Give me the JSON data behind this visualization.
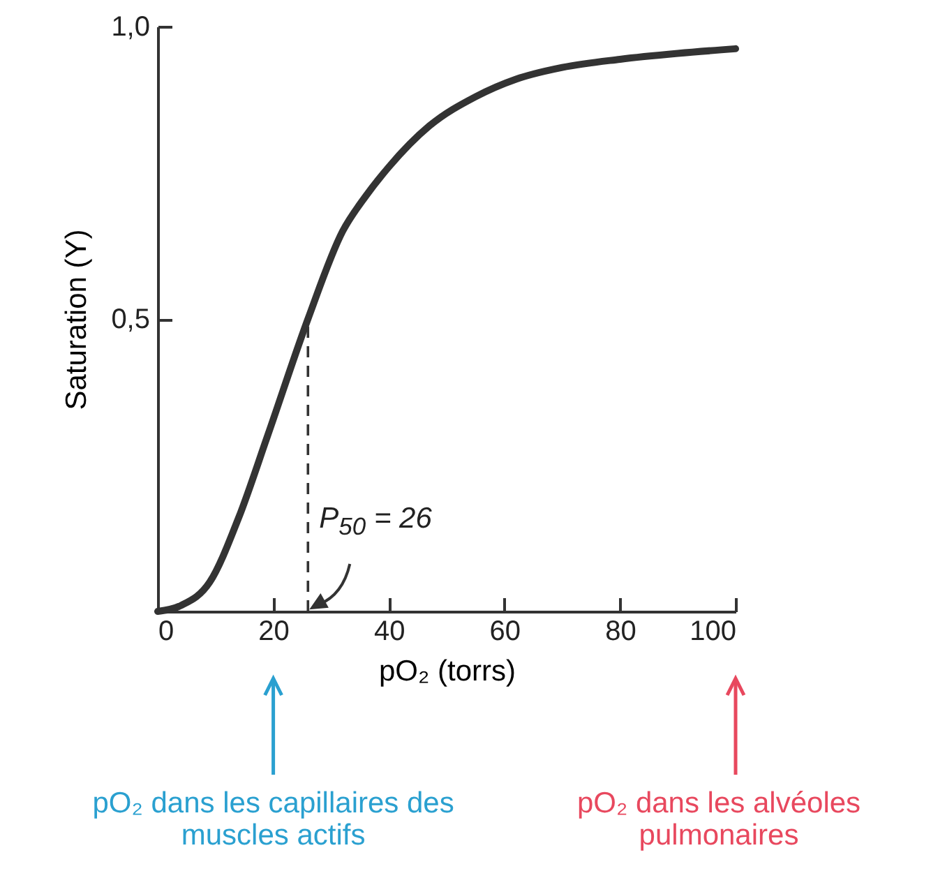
{
  "chart_data": {
    "type": "line",
    "xlabel": "pO₂ (torrs)",
    "ylabel": "Saturation (Y)",
    "x": [
      0,
      4,
      9,
      14,
      19,
      26,
      32,
      36,
      40,
      47,
      55,
      62,
      70,
      80,
      90,
      100
    ],
    "series": [
      {
        "color": "#333333",
        "values": [
          0,
          0.01,
          0.05,
          0.16,
          0.3,
          0.5,
          0.65,
          0.71,
          0.76,
          0.83,
          0.88,
          0.91,
          0.93,
          0.944,
          0.954,
          0.962
        ]
      },
      {
        "color": "#333333",
        "x": [
          26,
          26
        ],
        "values": [
          0,
          0.5
        ],
        "line_style": "dashed"
      }
    ],
    "xlim": [
      0,
      100
    ],
    "xticks": [
      0,
      20,
      40,
      60,
      80,
      100
    ],
    "ylim": [
      0,
      1
    ],
    "yticks": [
      {
        "value": 0.5,
        "label": "0,5"
      },
      {
        "value": 1,
        "label": "1,0"
      }
    ],
    "annotations": [
      "P$_{50}$ = 26",
      "pO₂ dans les capillaires des muscles actifs",
      "pO₂ dans les alvéoles pulmonaires"
    ],
    "grid": false
  }
}
